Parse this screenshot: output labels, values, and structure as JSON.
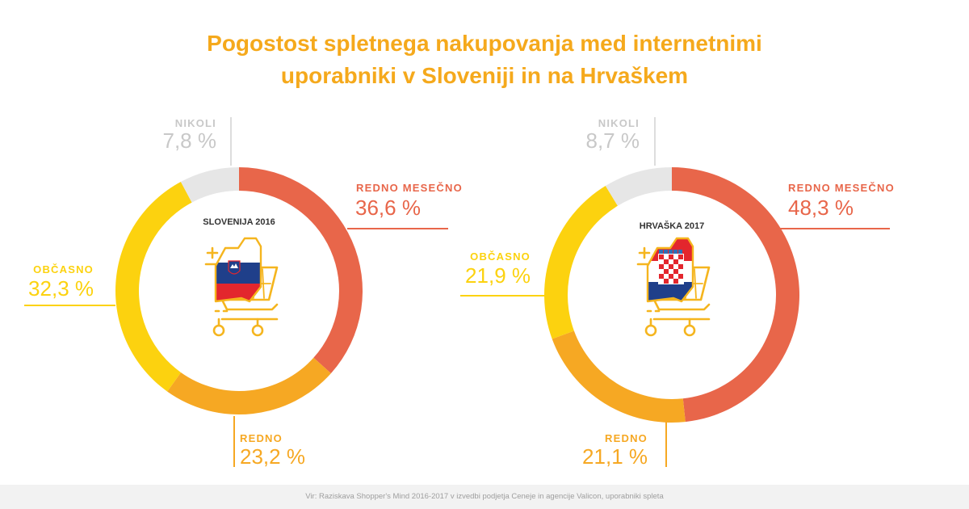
{
  "header": {
    "title_line1": "Pogostost spletnega nakupovanja med internetnimi",
    "title_line2": "uporabniki v Sloveniji in na Hrvaškem"
  },
  "colors": {
    "redno_mesecno": "#e8664a",
    "redno": "#f6a823",
    "obcasno": "#fcd20f",
    "nikoli": "#e6e6e6",
    "title": "#f5a91c",
    "nikoli_label": "#c8c8c8"
  },
  "chart_data": [
    {
      "type": "pie",
      "title": "SLOVENIJA 2016",
      "categories": [
        "REDNO MESEČNO",
        "REDNO",
        "OBČASNO",
        "NIKOLI"
      ],
      "values": [
        36.6,
        23.2,
        32.3,
        7.8
      ],
      "value_labels": [
        "36,6 %",
        "23,2 %",
        "32,3 %",
        "7,8 %"
      ],
      "flag": "slovenia-flag"
    },
    {
      "type": "pie",
      "title": "HRVAŠKA 2017",
      "categories": [
        "REDNO MESEČNO",
        "REDNO",
        "OBČASNO",
        "NIKOLI"
      ],
      "values": [
        48.3,
        21.1,
        21.9,
        8.7
      ],
      "value_labels": [
        "48,3 %",
        "21,1 %",
        "21,9 %",
        "8,7 %"
      ],
      "flag": "croatia-flag"
    }
  ],
  "footer": {
    "source": "Vir: Raziskava Shopper's Mind 2016-2017 v izvedbi podjetja Ceneje in agencije Valicon, uporabniki spleta"
  }
}
